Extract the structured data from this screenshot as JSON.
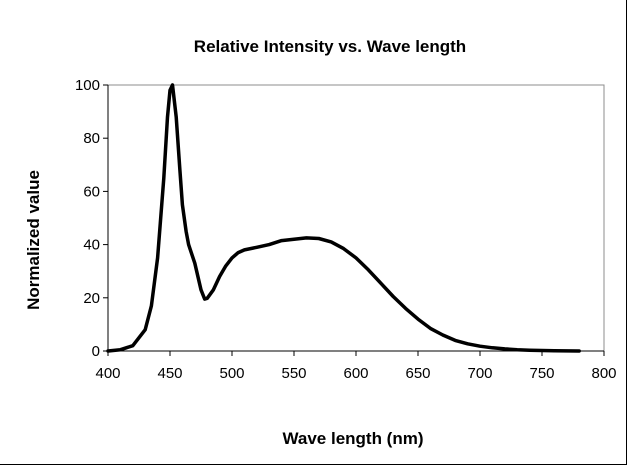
{
  "chart_data": {
    "type": "line",
    "title": "Relative Intensity vs. Wave length",
    "xlabel": "Wave length (nm)",
    "ylabel": "Normalized value",
    "xlim": [
      400,
      800
    ],
    "ylim": [
      0,
      100
    ],
    "xticks": [
      400,
      450,
      500,
      550,
      600,
      650,
      700,
      750,
      800
    ],
    "yticks": [
      0,
      20,
      40,
      60,
      80,
      100
    ],
    "grid": false,
    "legend": "none",
    "line_color": "#000000",
    "series": [
      {
        "x": [
          400,
          410,
          420,
          430,
          435,
          440,
          445,
          448,
          450,
          452,
          455,
          458,
          460,
          463,
          465,
          470,
          475,
          478,
          480,
          485,
          490,
          495,
          500,
          505,
          510,
          520,
          530,
          540,
          550,
          560,
          570,
          580,
          590,
          600,
          610,
          620,
          630,
          640,
          650,
          660,
          670,
          680,
          690,
          700,
          710,
          720,
          730,
          740,
          750,
          760,
          770,
          780
        ],
        "y": [
          0,
          0.5,
          2,
          8,
          17,
          35,
          65,
          88,
          98,
          100,
          88,
          68,
          55,
          45,
          40,
          33,
          23,
          19.5,
          19.8,
          23,
          28,
          32,
          35,
          37,
          38,
          39,
          40,
          41.5,
          42,
          42.5,
          42.3,
          41,
          38.5,
          35,
          30.5,
          25.5,
          20.5,
          16,
          12,
          8.5,
          6,
          4,
          2.7,
          1.8,
          1.2,
          0.8,
          0.5,
          0.3,
          0.2,
          0.1,
          0.05,
          0
        ]
      }
    ]
  }
}
